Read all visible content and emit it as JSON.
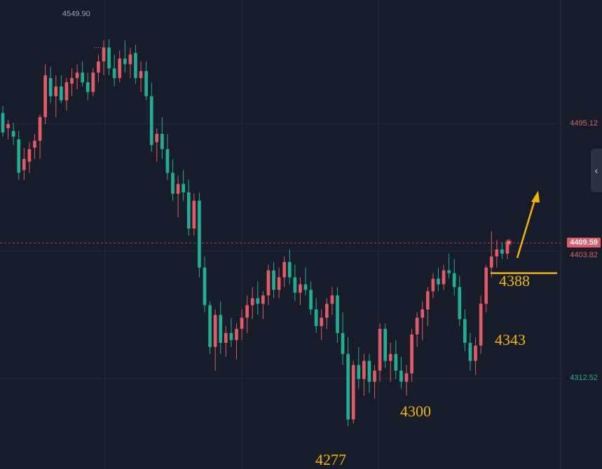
{
  "chart_data": {
    "type": "candlestick",
    "price_range": [
      4262,
      4575
    ],
    "colors": {
      "up": "#e25a66",
      "down": "#1fae95",
      "background": "#161c2a",
      "grid": "#232b3a",
      "annotation": "#f4b400",
      "arrow": "#f4b400"
    },
    "price_labels": {
      "high_marker": "4549.90",
      "level_1": "4495.12",
      "current": "4409.59",
      "level_2": "4403.82",
      "level_3": "4312.52"
    },
    "price_levels": {
      "high_marker": 4549.9,
      "level_1": 4495.12,
      "current": 4409.59,
      "level_2": 4403.82,
      "level_3": 4312.52
    },
    "annotations": [
      {
        "text": "4388",
        "price": 4388
      },
      {
        "text": "4343",
        "price": 4343
      },
      {
        "text": "4300",
        "price": 4300
      },
      {
        "text": "4277",
        "price": 4277
      }
    ],
    "support_line": {
      "price": 4388
    },
    "candles": [
      [
        4503,
        4508,
        4486,
        4489
      ],
      [
        4492,
        4498,
        4484,
        4495
      ],
      [
        4490,
        4496,
        4480,
        4486
      ],
      [
        4484,
        4490,
        4455,
        4460
      ],
      [
        4462,
        4478,
        4455,
        4470
      ],
      [
        4468,
        4482,
        4460,
        4477
      ],
      [
        4478,
        4488,
        4470,
        4483
      ],
      [
        4483,
        4502,
        4470,
        4500
      ],
      [
        4500,
        4538,
        4495,
        4530
      ],
      [
        4528,
        4536,
        4510,
        4515
      ],
      [
        4515,
        4530,
        4500,
        4522
      ],
      [
        4522,
        4530,
        4510,
        4512
      ],
      [
        4512,
        4528,
        4505,
        4525
      ],
      [
        4524,
        4535,
        4515,
        4528
      ],
      [
        4528,
        4538,
        4520,
        4532
      ],
      [
        4532,
        4540,
        4522,
        4525
      ],
      [
        4525,
        4532,
        4512,
        4518
      ],
      [
        4518,
        4535,
        4515,
        4532
      ],
      [
        4532,
        4545,
        4525,
        4540
      ],
      [
        4540,
        4555,
        4530,
        4550
      ],
      [
        4550,
        4556,
        4530,
        4535
      ],
      [
        4535,
        4545,
        4522,
        4528
      ],
      [
        4528,
        4548,
        4525,
        4542
      ],
      [
        4542,
        4555,
        4532,
        4538
      ],
      [
        4538,
        4550,
        4528,
        4545
      ],
      [
        4546,
        4552,
        4524,
        4528
      ],
      [
        4528,
        4540,
        4518,
        4533
      ],
      [
        4533,
        4540,
        4512,
        4515
      ],
      [
        4515,
        4525,
        4475,
        4480
      ],
      [
        4482,
        4492,
        4468,
        4488
      ],
      [
        4488,
        4500,
        4470,
        4477
      ],
      [
        4477,
        4488,
        4455,
        4460
      ],
      [
        4460,
        4470,
        4440,
        4445
      ],
      [
        4445,
        4458,
        4428,
        4452
      ],
      [
        4452,
        4462,
        4440,
        4446
      ],
      [
        4446,
        4455,
        4415,
        4420
      ],
      [
        4420,
        4445,
        4415,
        4440
      ],
      [
        4440,
        4446,
        4385,
        4392
      ],
      [
        4392,
        4400,
        4360,
        4365
      ],
      [
        4365,
        4368,
        4330,
        4335
      ],
      [
        4335,
        4362,
        4318,
        4358
      ],
      [
        4358,
        4368,
        4330,
        4338
      ],
      [
        4338,
        4350,
        4328,
        4345
      ],
      [
        4345,
        4356,
        4335,
        4340
      ],
      [
        4340,
        4352,
        4326,
        4348
      ],
      [
        4348,
        4362,
        4340,
        4356
      ],
      [
        4356,
        4372,
        4345,
        4365
      ],
      [
        4365,
        4378,
        4355,
        4370
      ],
      [
        4370,
        4382,
        4358,
        4366
      ],
      [
        4366,
        4375,
        4355,
        4372
      ],
      [
        4372,
        4394,
        4365,
        4390
      ],
      [
        4390,
        4396,
        4370,
        4376
      ],
      [
        4376,
        4392,
        4370,
        4385
      ],
      [
        4385,
        4400,
        4378,
        4396
      ],
      [
        4396,
        4405,
        4380,
        4385
      ],
      [
        4385,
        4394,
        4368,
        4374
      ],
      [
        4374,
        4385,
        4365,
        4380
      ],
      [
        4380,
        4392,
        4372,
        4376
      ],
      [
        4376,
        4382,
        4358,
        4362
      ],
      [
        4362,
        4370,
        4345,
        4350
      ],
      [
        4350,
        4362,
        4340,
        4356
      ],
      [
        4356,
        4370,
        4348,
        4366
      ],
      [
        4366,
        4378,
        4358,
        4372
      ],
      [
        4372,
        4378,
        4338,
        4345
      ],
      [
        4345,
        4360,
        4322,
        4330
      ],
      [
        4330,
        4342,
        4278,
        4283
      ],
      [
        4283,
        4325,
        4280,
        4322
      ],
      [
        4322,
        4335,
        4305,
        4312
      ],
      [
        4312,
        4330,
        4300,
        4325
      ],
      [
        4325,
        4330,
        4302,
        4310
      ],
      [
        4310,
        4322,
        4298,
        4318
      ],
      [
        4318,
        4352,
        4310,
        4348
      ],
      [
        4348,
        4352,
        4320,
        4325
      ],
      [
        4325,
        4338,
        4310,
        4330
      ],
      [
        4330,
        4340,
        4312,
        4318
      ],
      [
        4318,
        4328,
        4305,
        4310
      ],
      [
        4310,
        4322,
        4300,
        4316
      ],
      [
        4316,
        4348,
        4310,
        4344
      ],
      [
        4344,
        4360,
        4335,
        4356
      ],
      [
        4356,
        4368,
        4340,
        4362
      ],
      [
        4362,
        4378,
        4350,
        4375
      ],
      [
        4375,
        4388,
        4370,
        4384
      ],
      [
        4384,
        4392,
        4375,
        4380
      ],
      [
        4380,
        4394,
        4376,
        4390
      ],
      [
        4390,
        4402,
        4384,
        4388
      ],
      [
        4388,
        4398,
        4372,
        4378
      ],
      [
        4378,
        4386,
        4350,
        4355
      ],
      [
        4355,
        4362,
        4332,
        4338
      ],
      [
        4338,
        4345,
        4318,
        4325
      ],
      [
        4325,
        4342,
        4315,
        4336
      ],
      [
        4336,
        4372,
        4330,
        4366
      ],
      [
        4366,
        4394,
        4360,
        4392
      ],
      [
        4392,
        4418,
        4385,
        4400
      ],
      [
        4400,
        4412,
        4392,
        4405
      ],
      [
        4405,
        4410,
        4398,
        4402
      ],
      [
        4402,
        4412,
        4398,
        4410
      ]
    ]
  },
  "ui": {
    "side_tab_icon": "chevron-left-icon",
    "side_tab_glyph": "‹"
  }
}
